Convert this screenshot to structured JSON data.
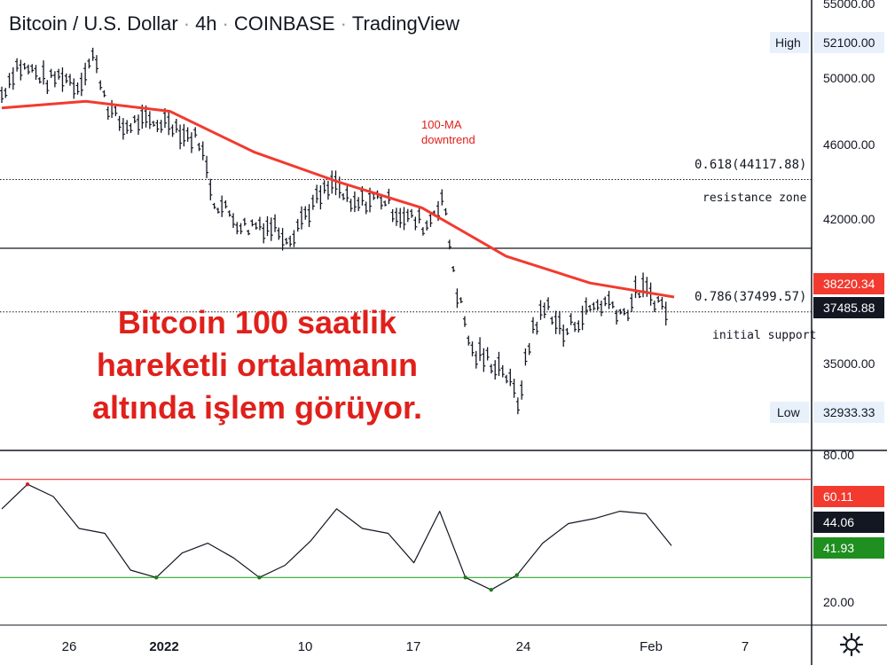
{
  "header": {
    "symbol": "Bitcoin / U.S. Dollar",
    "interval": "4h",
    "exchange": "COINBASE",
    "platform": "TradingView"
  },
  "overlay_text": [
    "Bitcoin 100 saatlik",
    "hareketli ortalamanın",
    "altında işlem görüyor."
  ],
  "annotations": {
    "ma_label_1": "100-MA",
    "ma_label_2": "downtrend",
    "fib_618": "0.618(44117.88)",
    "resistance": "resistance zone",
    "fib_786": "0.786(37499.57)",
    "support": "initial support"
  },
  "price_axis": {
    "ticks": [
      "55000.00",
      "50000.00",
      "46000.00",
      "42000.00",
      "35000.00"
    ],
    "high_label": "High",
    "high_value": "52100.00",
    "low_label": "Low",
    "low_value": "32933.33",
    "ma_value": "38220.34",
    "last_value": "37485.88"
  },
  "rsi_axis": {
    "ticks": [
      "80.00",
      "20.00"
    ],
    "v1": "60.11",
    "v2": "44.06",
    "v3": "41.93"
  },
  "time_axis": [
    "26",
    "2022",
    "10",
    "17",
    "24",
    "Feb",
    "7"
  ],
  "colors": {
    "ma": "#f23a2f",
    "red_badge": "#f23a2f",
    "dark_badge": "#131722",
    "green_badge": "#1f8f1f",
    "high_low_bg": "#e8f1fb"
  },
  "chart_data": {
    "type": "line",
    "price_series": [
      {
        "x": "Jan 22",
        "y": 49000
      },
      {
        "x": "Jan 23",
        "y": 50800
      },
      {
        "x": "Jan 24",
        "y": 50500
      },
      {
        "x": "Jan 25",
        "y": 49800
      },
      {
        "x": "Jan 26",
        "y": 50200
      },
      {
        "x": "Jan 27",
        "y": 49500
      },
      {
        "x": "Jan 28",
        "y": 51500
      },
      {
        "x": "Jan 29",
        "y": 48300
      },
      {
        "x": "Jan 30",
        "y": 47000
      },
      {
        "x": "Dec 31",
        "y": 47400
      },
      {
        "x": "Jan 1",
        "y": 47200
      },
      {
        "x": "Jan 2",
        "y": 47500
      },
      {
        "x": "Jan 3",
        "y": 46600
      },
      {
        "x": "Jan 4",
        "y": 46300
      },
      {
        "x": "Jan 5",
        "y": 43000
      },
      {
        "x": "Jan 6",
        "y": 42300
      },
      {
        "x": "Jan 7",
        "y": 41600
      },
      {
        "x": "Jan 8",
        "y": 41800
      },
      {
        "x": "Jan 9",
        "y": 41600
      },
      {
        "x": "Jan 10",
        "y": 41200
      },
      {
        "x": "Jan 11",
        "y": 42300
      },
      {
        "x": "Jan 12",
        "y": 43200
      },
      {
        "x": "Jan 13",
        "y": 43900
      },
      {
        "x": "Jan 14",
        "y": 42600
      },
      {
        "x": "Jan 15",
        "y": 43000
      },
      {
        "x": "Jan 16",
        "y": 43200
      },
      {
        "x": "Jan 17",
        "y": 42400
      },
      {
        "x": "Jan 18",
        "y": 42000
      },
      {
        "x": "Jan 19",
        "y": 41700
      },
      {
        "x": "Jan 20",
        "y": 43200
      },
      {
        "x": "Jan 21",
        "y": 38500
      },
      {
        "x": "Jan 22",
        "y": 35500
      },
      {
        "x": "Jan 23",
        "y": 35200
      },
      {
        "x": "Jan 24",
        "y": 34800
      },
      {
        "x": "Jan 24",
        "y": 33000
      },
      {
        "x": "Jan 25",
        "y": 36800
      },
      {
        "x": "Jan 26",
        "y": 37800
      },
      {
        "x": "Jan 27",
        "y": 36400
      },
      {
        "x": "Jan 28",
        "y": 37200
      },
      {
        "x": "Jan 29",
        "y": 37800
      },
      {
        "x": "Jan 30",
        "y": 38000
      },
      {
        "x": "Jan 31",
        "y": 37400
      },
      {
        "x": "Feb 1",
        "y": 38600
      },
      {
        "x": "Feb 2",
        "y": 38200
      },
      {
        "x": "Feb 3",
        "y": 37400
      }
    ],
    "ma_series": [
      {
        "x": "Jan 22",
        "y": 48200
      },
      {
        "x": "Jan 28",
        "y": 48600
      },
      {
        "x": "Jan 5",
        "y": 48000
      },
      {
        "x": "Jan 10",
        "y": 45600
      },
      {
        "x": "Jan 15",
        "y": 44000
      },
      {
        "x": "Jan 20",
        "y": 42600
      },
      {
        "x": "Jan 25",
        "y": 40200
      },
      {
        "x": "Jan 30",
        "y": 38900
      },
      {
        "x": "Feb 3",
        "y": 38220
      }
    ],
    "rsi_series": [
      {
        "x": "Jan 22",
        "y": 58
      },
      {
        "x": "Jan 23",
        "y": 68
      },
      {
        "x": "Jan 24",
        "y": 63
      },
      {
        "x": "Jan 25",
        "y": 50
      },
      {
        "x": "Jan 27",
        "y": 48
      },
      {
        "x": "Jan 28",
        "y": 33
      },
      {
        "x": "Jan 29",
        "y": 30
      },
      {
        "x": "Jan 1",
        "y": 40
      },
      {
        "x": "Jan 3",
        "y": 44
      },
      {
        "x": "Jan 5",
        "y": 38
      },
      {
        "x": "Jan 7",
        "y": 30
      },
      {
        "x": "Jan 9",
        "y": 35
      },
      {
        "x": "Jan 11",
        "y": 45
      },
      {
        "x": "Jan 13",
        "y": 58
      },
      {
        "x": "Jan 15",
        "y": 50
      },
      {
        "x": "Jan 17",
        "y": 48
      },
      {
        "x": "Jan 19",
        "y": 36
      },
      {
        "x": "Jan 20",
        "y": 57
      },
      {
        "x": "Jan 21",
        "y": 30
      },
      {
        "x": "Jan 23",
        "y": 25
      },
      {
        "x": "Jan 24",
        "y": 31
      },
      {
        "x": "Jan 26",
        "y": 44
      },
      {
        "x": "Jan 28",
        "y": 52
      },
      {
        "x": "Jan 30",
        "y": 54
      },
      {
        "x": "Feb 1",
        "y": 57
      },
      {
        "x": "Feb 2",
        "y": 56
      },
      {
        "x": "Feb 3",
        "y": 43
      }
    ],
    "price_ylim": [
      32000,
      55000
    ],
    "rsi_ylim": [
      20,
      80
    ],
    "levels": {
      "fib_618": 44117.88,
      "fib_786": 37499.57,
      "support_line": 40500,
      "rsi_upper": 70,
      "rsi_lower": 30
    },
    "high": 52100,
    "low": 32933.33,
    "ma_last": 38220.34,
    "last": 37485.88,
    "grid": false
  }
}
